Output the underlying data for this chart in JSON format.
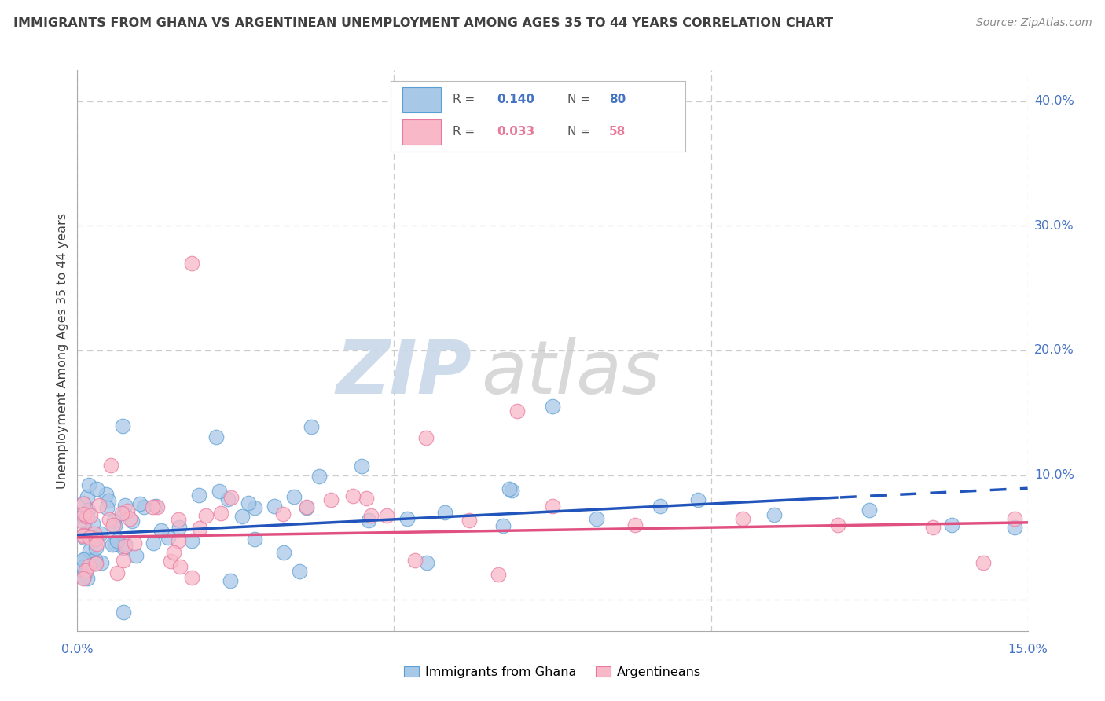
{
  "title": "IMMIGRANTS FROM GHANA VS ARGENTINEAN UNEMPLOYMENT AMONG AGES 35 TO 44 YEARS CORRELATION CHART",
  "source": "Source: ZipAtlas.com",
  "ylabel": "Unemployment Among Ages 35 to 44 years",
  "series1_label": "Immigrants from Ghana",
  "series2_label": "Argentineans",
  "color1_fill": "#a8c8e8",
  "color1_edge": "#5a9fd4",
  "color2_fill": "#f8b8c8",
  "color2_edge": "#e878a0",
  "trend1_color": "#2255bb",
  "trend2_color": "#e05080",
  "legend_R1": "0.140",
  "legend_N1": "80",
  "legend_R2": "0.033",
  "legend_N2": "58",
  "legend_text_color": "#555555",
  "legend_color1": "#4472c4",
  "legend_color2": "#e87898",
  "xlim": [
    0.0,
    0.15
  ],
  "ylim": [
    -0.025,
    0.425
  ],
  "ytick_positions": [
    0.0,
    0.1,
    0.2,
    0.3,
    0.4
  ],
  "ytick_labels": [
    "",
    "10.0%",
    "20.0%",
    "30.0%",
    "40.0%"
  ],
  "xtick_labels_text": [
    "0.0%",
    "15.0%"
  ],
  "grid_color": "#cccccc",
  "title_color": "#404040",
  "axis_color": "#4472c4",
  "background_color": "#ffffff",
  "N1": 80,
  "N2": 58,
  "R1": 0.14,
  "R2": 0.033
}
